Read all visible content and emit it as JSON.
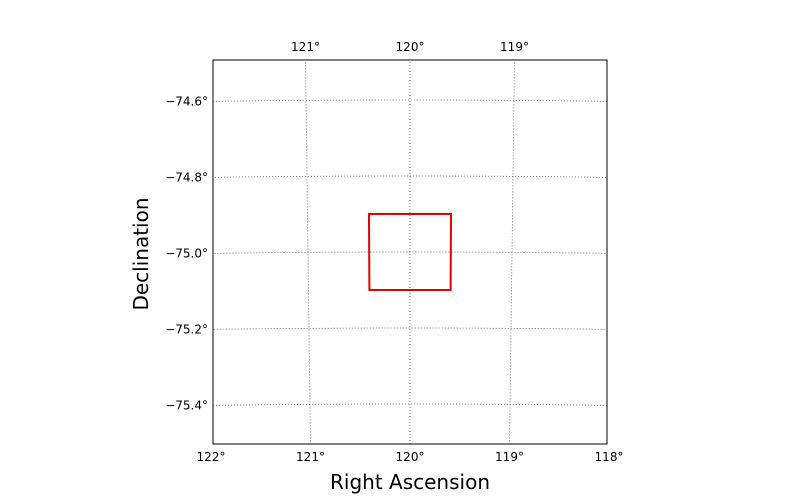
{
  "chart_data": {
    "type": "scatter",
    "projection": "celestial sky map (RA / Dec graticule)",
    "xlabel": "Right Ascension",
    "ylabel": "Declination",
    "xlim": [
      122.05,
      117.95
    ],
    "ylim": [
      -75.5,
      -74.5
    ],
    "grid": true,
    "bottom_ticks": [
      {
        "value": 122,
        "label": "122°"
      },
      {
        "value": 121,
        "label": "121°"
      },
      {
        "value": 120,
        "label": "120°"
      },
      {
        "value": 119,
        "label": "119°"
      },
      {
        "value": 118,
        "label": "118°"
      }
    ],
    "top_ticks": [
      {
        "value": 121,
        "label": "121°"
      },
      {
        "value": 120,
        "label": "120°"
      },
      {
        "value": 119,
        "label": "119°"
      }
    ],
    "left_ticks": [
      {
        "value": -74.6,
        "label": "−74.6°"
      },
      {
        "value": -74.8,
        "label": "−74.8°"
      },
      {
        "value": -75.0,
        "label": "−75.0°"
      },
      {
        "value": -75.2,
        "label": "−75.2°"
      },
      {
        "value": -75.4,
        "label": "−75.4°"
      }
    ],
    "meridians": [
      122,
      121,
      120,
      119,
      118
    ],
    "parallels": [
      -74.6,
      -74.8,
      -75.0,
      -75.2,
      -75.4
    ],
    "region": {
      "shape": "rectangle",
      "color": "#e00000",
      "ra_min": 119.6,
      "ra_max": 120.4,
      "dec_min": -75.1,
      "dec_max": -74.9
    }
  }
}
